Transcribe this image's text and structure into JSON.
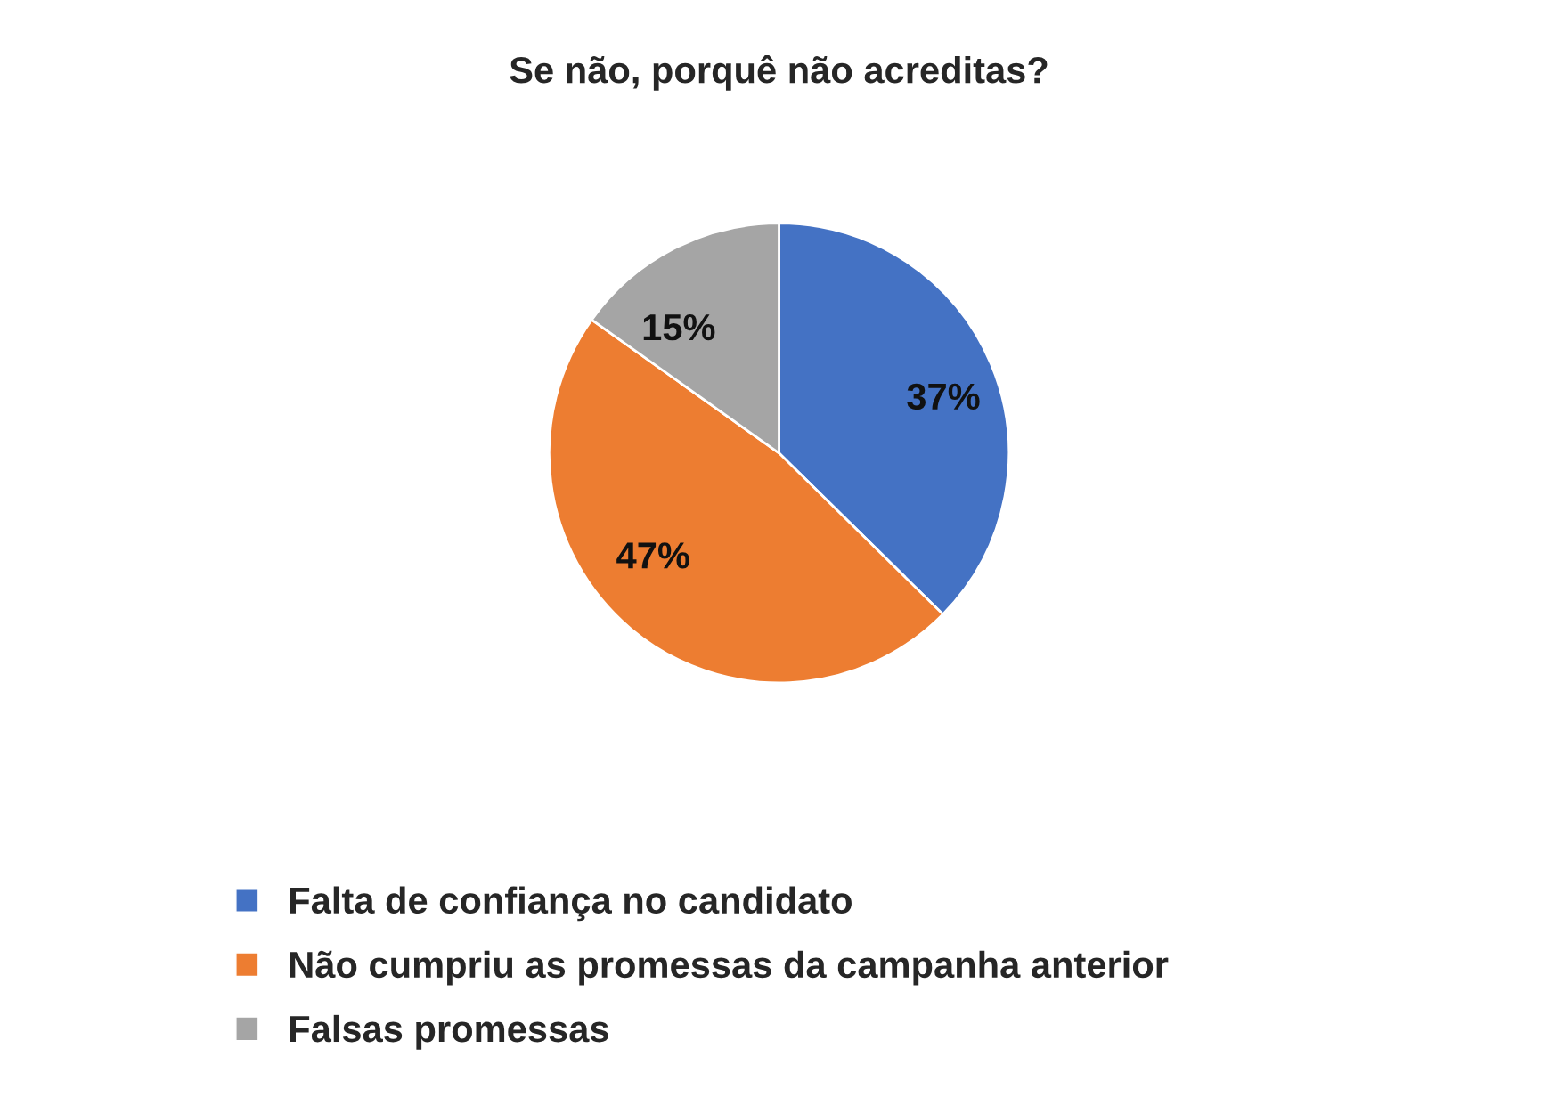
{
  "chart_data": {
    "type": "pie",
    "title": "Se não, porquê não acreditas?",
    "categories": [
      "Falta de confiança no candidato",
      "Não cumpriu as promessas da campanha anterior",
      "Falsas promessas"
    ],
    "values": [
      37,
      47,
      15
    ],
    "colors": [
      "#4472c4",
      "#ed7d31",
      "#a5a5a5"
    ],
    "value_labels": [
      "37%",
      "47%",
      "15%"
    ],
    "legend": "bottom"
  }
}
